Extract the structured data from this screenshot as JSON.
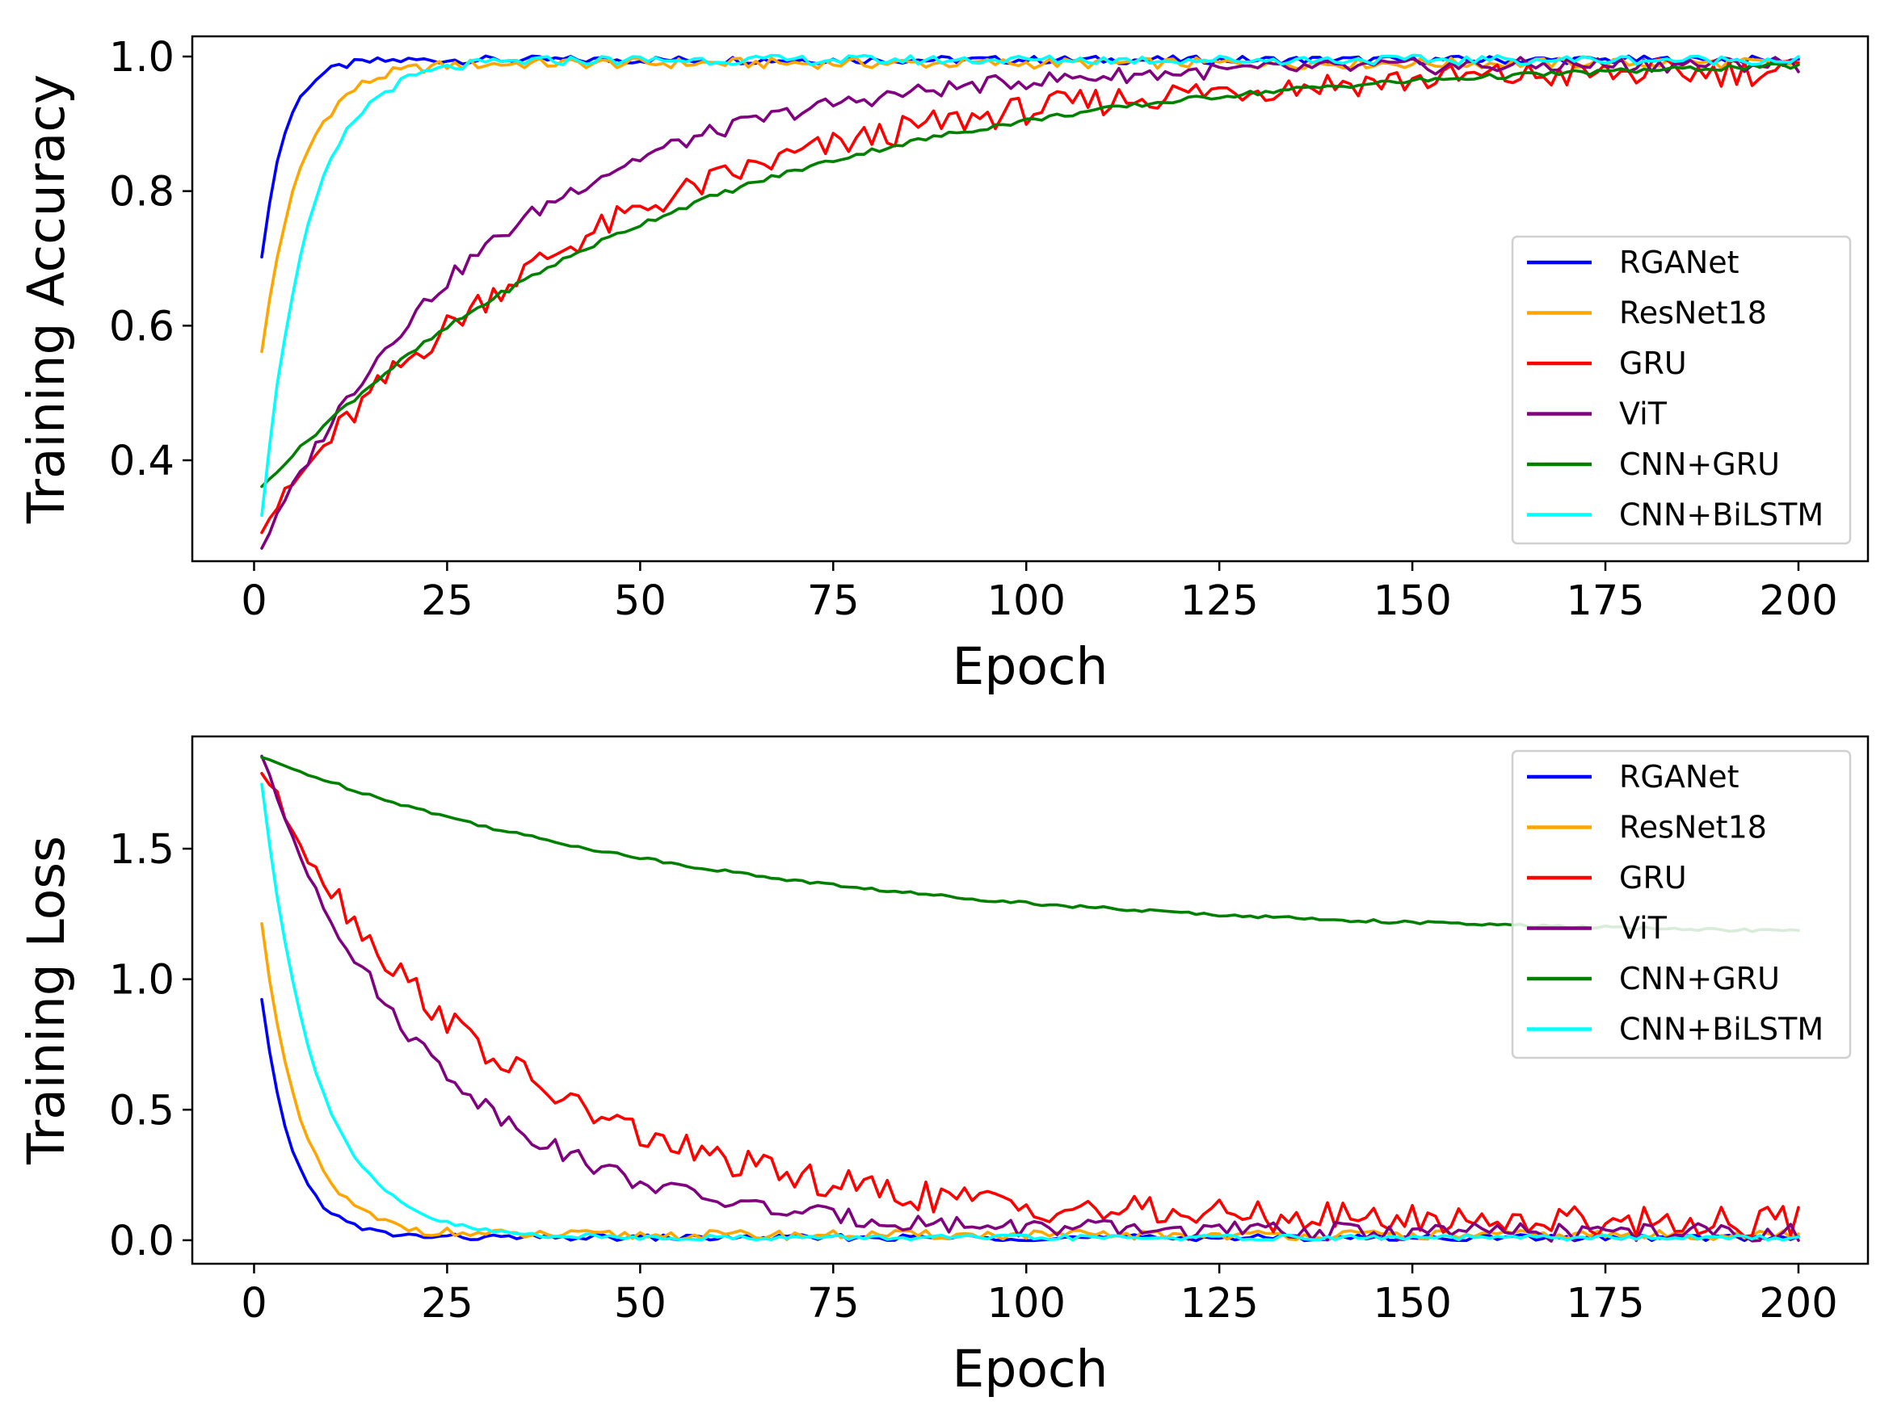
{
  "chart_data": [
    {
      "type": "line",
      "id": "accuracy",
      "ylabel": "Training Accuracy",
      "xlabel": "Epoch",
      "xlim": [
        -8,
        209
      ],
      "ylim": [
        0.25,
        1.03
      ],
      "xticks": [
        0,
        25,
        50,
        75,
        100,
        125,
        150,
        175,
        200
      ],
      "xtick_labels": [
        "0",
        "25",
        "50",
        "75",
        "100",
        "125",
        "150",
        "175",
        "200"
      ],
      "yticks": [
        0.4,
        0.6,
        0.8,
        1.0
      ],
      "ytick_labels": [
        "0.4",
        "0.6",
        "0.8",
        "1.0"
      ],
      "legend_position": "lower-right",
      "series": [
        {
          "name": "RGANet",
          "color": "#0000ff",
          "start": 0.7,
          "end": 0.995,
          "tau": 3,
          "noise": 0.006
        },
        {
          "name": "ResNet18",
          "color": "#ffa500",
          "start": 0.56,
          "end": 0.99,
          "tau": 5,
          "noise": 0.008
        },
        {
          "name": "GRU",
          "color": "#ff0000",
          "start": 0.3,
          "end": 0.985,
          "tau": 42,
          "noise": 0.022
        },
        {
          "name": "ViT",
          "color": "#800080",
          "start": 0.27,
          "end": 0.99,
          "tau": 30,
          "noise": 0.012
        },
        {
          "name": "CNN+GRU",
          "color": "#008000",
          "start": 0.36,
          "end": 1.0,
          "tau": 52,
          "noise": 0.004
        },
        {
          "name": "CNN+BiLSTM",
          "color": "#00ffff",
          "start": 0.32,
          "end": 0.995,
          "tau": 6,
          "noise": 0.007
        }
      ]
    },
    {
      "type": "line",
      "id": "loss",
      "ylabel": "Training Loss",
      "xlabel": "Epoch",
      "xlim": [
        -8,
        209
      ],
      "ylim": [
        -0.09,
        1.93
      ],
      "xticks": [
        0,
        25,
        50,
        75,
        100,
        125,
        150,
        175,
        200
      ],
      "xtick_labels": [
        "0",
        "25",
        "50",
        "75",
        "100",
        "125",
        "150",
        "175",
        "200"
      ],
      "yticks": [
        0.0,
        0.5,
        1.0,
        1.5
      ],
      "ytick_labels": [
        "0.0",
        "0.5",
        "1.0",
        "1.5"
      ],
      "legend_position": "upper-right",
      "series": [
        {
          "name": "RGANet",
          "color": "#0000ff",
          "start": 0.92,
          "end": 0.01,
          "tau": 4,
          "noise": 0.012
        },
        {
          "name": "ResNet18",
          "color": "#ffa500",
          "start": 1.22,
          "end": 0.02,
          "tau": 5,
          "noise": 0.018
        },
        {
          "name": "GRU",
          "color": "#ff0000",
          "start": 1.8,
          "end": 0.07,
          "tau": 30,
          "noise": 0.06
        },
        {
          "name": "ViT",
          "color": "#800080",
          "start": 1.85,
          "end": 0.03,
          "tau": 22,
          "noise": 0.035
        },
        {
          "name": "CNN+GRU",
          "color": "#008000",
          "start": 1.85,
          "end": 1.16,
          "tau": 60,
          "noise": 0.006
        },
        {
          "name": "CNN+BiLSTM",
          "color": "#00ffff",
          "start": 1.75,
          "end": 0.01,
          "tau": 7,
          "noise": 0.01
        }
      ]
    }
  ]
}
